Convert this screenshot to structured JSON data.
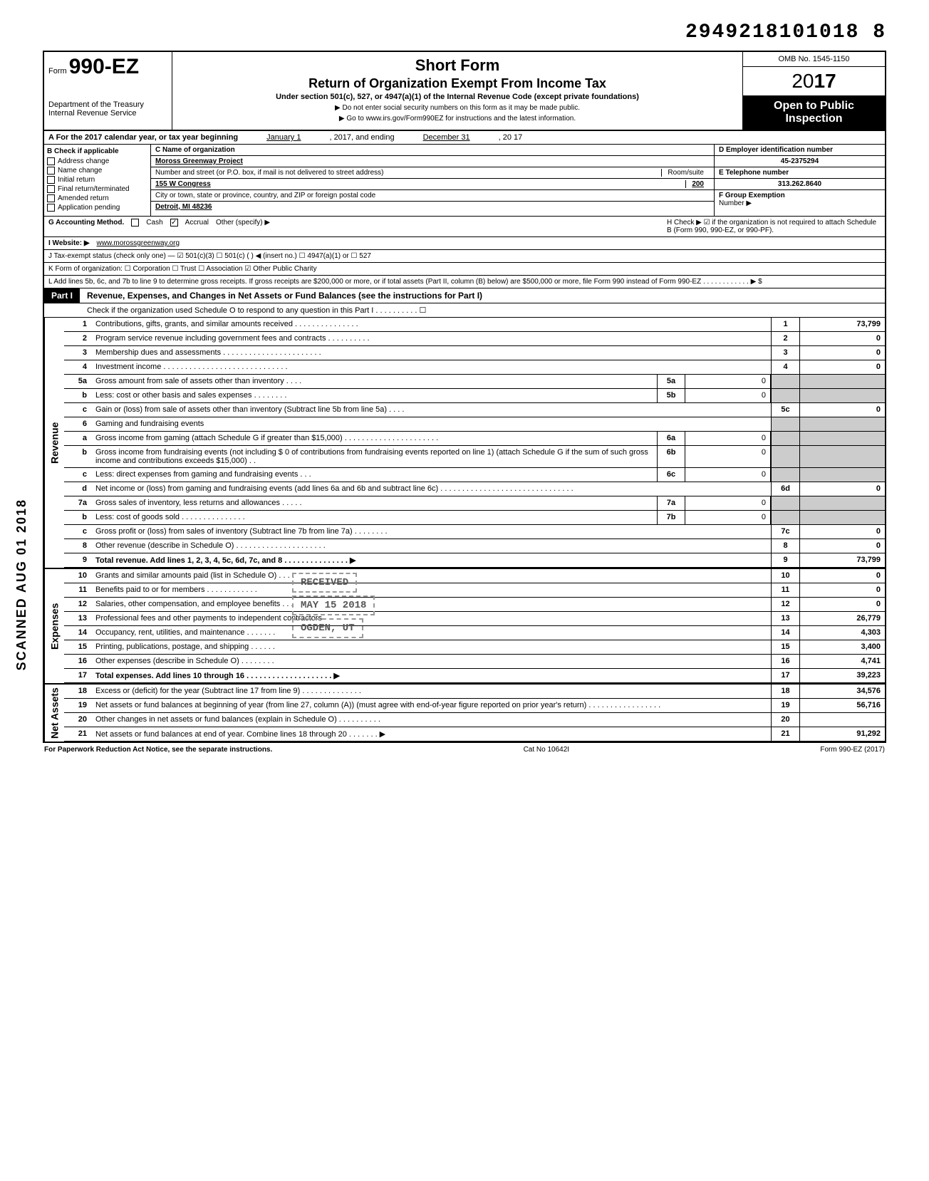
{
  "doc_id": "2949218101018 8",
  "form": {
    "number": "990-EZ",
    "prefix": "Form",
    "dept": "Department of the Treasury",
    "irs": "Internal Revenue Service",
    "title_main": "Short Form",
    "title_sub": "Return of Organization Exempt From Income Tax",
    "title_small": "Under section 501(c), 527, or 4947(a)(1) of the Internal Revenue Code (except private foundations)",
    "note1": "▶ Do not enter social security numbers on this form as it may be made public.",
    "note2": "▶ Go to www.irs.gov/Form990EZ for instructions and the latest information.",
    "omb": "OMB No. 1545-1150",
    "year_prefix": "20",
    "year_bold": "17",
    "open_public": "Open to Public Inspection"
  },
  "row_a": {
    "label": "A  For the 2017 calendar year, or tax year beginning",
    "begin": "January 1",
    "mid": ", 2017, and ending",
    "end": "December 31",
    "tail": ", 20   17"
  },
  "col_b": {
    "header": "B  Check if applicable",
    "items": [
      "Address change",
      "Name change",
      "Initial return",
      "Final return/terminated",
      "Amended return",
      "Application pending"
    ]
  },
  "col_c": {
    "name_lbl": "C  Name of organization",
    "name": "Moross Greenway Project",
    "street_lbl": "Number and street (or P.O. box, if mail is not delivered to street address)",
    "street": "155 W Congress",
    "room_lbl": "Room/suite",
    "room": "200",
    "city_lbl": "City or town, state or province, country, and ZIP or foreign postal code",
    "city": "Detroit, MI  48236"
  },
  "col_de": {
    "d_lbl": "D Employer identification number",
    "d_val": "45-2375294",
    "e_lbl": "E Telephone number",
    "e_val": "313.262.8640",
    "f_lbl": "F Group Exemption",
    "f_val": "Number ▶"
  },
  "meta": {
    "g": "G Accounting Method.",
    "g_cash": "Cash",
    "g_accrual": "Accrual",
    "g_other": "Other (specify) ▶",
    "h": "H  Check ▶ ☑ if the organization is not required to attach Schedule B (Form 990, 990-EZ, or 990-PF).",
    "i": "I  Website: ▶",
    "i_val": "www.morossgreenway.org",
    "j": "J Tax-exempt status (check only one) — ☑ 501(c)(3)   ☐ 501(c) (    ) ◀ (insert no.) ☐ 4947(a)(1) or   ☐ 527",
    "k": "K Form of organization:  ☐ Corporation    ☐ Trust    ☐ Association    ☑ Other  Public Charity",
    "l": "L  Add lines 5b, 6c, and 7b to line 9 to determine gross receipts. If gross receipts are $200,000 or more, or if total assets (Part II, column (B) below) are $500,000 or more, file Form 990 instead of Form 990-EZ . . . . . . . . . . . . ▶  $"
  },
  "part1": {
    "badge": "Part I",
    "title": "Revenue, Expenses, and Changes in Net Assets or Fund Balances (see the instructions for Part I)",
    "note": "Check if the organization used Schedule O to respond to any question in this Part I . . . . . . . . . . ☐"
  },
  "sections": {
    "revenue": "Revenue",
    "expenses": "Expenses",
    "netassets": "Net Assets"
  },
  "lines": [
    {
      "n": "1",
      "d": "Contributions, gifts, grants, and similar amounts received . . . . . . . . . . . . . . .",
      "rn": "1",
      "rv": "73,799"
    },
    {
      "n": "2",
      "d": "Program service revenue including government fees and contracts . . . . . . . . . .",
      "rn": "2",
      "rv": "0"
    },
    {
      "n": "3",
      "d": "Membership dues and assessments . . . . . . . . . . . . . . . . . . . . . . .",
      "rn": "3",
      "rv": "0"
    },
    {
      "n": "4",
      "d": "Investment income . . . . . . . . . . . . . . . . . . . . . . . . . . . . .",
      "rn": "4",
      "rv": "0"
    },
    {
      "n": "5a",
      "d": "Gross amount from sale of assets other than inventory . . . .",
      "mn": "5a",
      "mv": "0",
      "shaded": true
    },
    {
      "n": "b",
      "d": "Less: cost or other basis and sales expenses . . . . . . . .",
      "mn": "5b",
      "mv": "0",
      "shaded": true
    },
    {
      "n": "c",
      "d": "Gain or (loss) from sale of assets other than inventory (Subtract line 5b from line 5a) . . . .",
      "rn": "5c",
      "rv": "0"
    },
    {
      "n": "6",
      "d": "Gaming and fundraising events",
      "shaded": true
    },
    {
      "n": "a",
      "d": "Gross income from gaming (attach Schedule G if greater than $15,000) . . . . . . . . . . . . . . . . . . . . . .",
      "mn": "6a",
      "mv": "0",
      "shaded": true
    },
    {
      "n": "b",
      "d": "Gross income from fundraising events (not including  $            0 of contributions from fundraising events reported on line 1) (attach Schedule G if the sum of such gross income and contributions exceeds $15,000) . .",
      "mn": "6b",
      "mv": "0",
      "shaded": true
    },
    {
      "n": "c",
      "d": "Less: direct expenses from gaming and fundraising events . . .",
      "mn": "6c",
      "mv": "0",
      "shaded": true
    },
    {
      "n": "d",
      "d": "Net income or (loss) from gaming and fundraising events (add lines 6a and 6b and subtract line 6c) . . . . . . . . . . . . . . . . . . . . . . . . . . . . . . .",
      "rn": "6d",
      "rv": "0"
    },
    {
      "n": "7a",
      "d": "Gross sales of inventory, less returns and allowances . . . . .",
      "mn": "7a",
      "mv": "0",
      "shaded": true
    },
    {
      "n": "b",
      "d": "Less: cost of goods sold . . . . . . . . . . . . . . .",
      "mn": "7b",
      "mv": "0",
      "shaded": true
    },
    {
      "n": "c",
      "d": "Gross profit or (loss) from sales of inventory (Subtract line 7b from line 7a) . . . . . . . .",
      "rn": "7c",
      "rv": "0"
    },
    {
      "n": "8",
      "d": "Other revenue (describe in Schedule O) . . . . . . . . . . . . . . . . . . . . .",
      "rn": "8",
      "rv": "0"
    },
    {
      "n": "9",
      "d": "Total revenue. Add lines 1, 2, 3, 4, 5c, 6d, 7c, and 8 . . . . . . . . . . . . . . . ▶",
      "rn": "9",
      "rv": "73,799",
      "bold": true
    }
  ],
  "exp_lines": [
    {
      "n": "10",
      "d": "Grants and similar amounts paid (list in Schedule O) . . . .",
      "rn": "10",
      "rv": "0"
    },
    {
      "n": "11",
      "d": "Benefits paid to or for members . . . . . . . . . . . .",
      "rn": "11",
      "rv": "0"
    },
    {
      "n": "12",
      "d": "Salaries, other compensation, and employee benefits . . .",
      "rn": "12",
      "rv": "0"
    },
    {
      "n": "13",
      "d": "Professional fees and other payments to independent contractors",
      "rn": "13",
      "rv": "26,779"
    },
    {
      "n": "14",
      "d": "Occupancy, rent, utilities, and maintenance . . . . . . .",
      "rn": "14",
      "rv": "4,303"
    },
    {
      "n": "15",
      "d": "Printing, publications, postage, and shipping . . . . . .",
      "rn": "15",
      "rv": "3,400"
    },
    {
      "n": "16",
      "d": "Other expenses (describe in Schedule O) . . . . . . . .",
      "rn": "16",
      "rv": "4,741"
    },
    {
      "n": "17",
      "d": "Total expenses. Add lines 10 through 16 . . . . . . . . . . . . . . . . . . . . ▶",
      "rn": "17",
      "rv": "39,223",
      "bold": true
    }
  ],
  "na_lines": [
    {
      "n": "18",
      "d": "Excess or (deficit) for the year (Subtract line 17 from line 9) . . . . . . . . . . . . . .",
      "rn": "18",
      "rv": "34,576"
    },
    {
      "n": "19",
      "d": "Net assets or fund balances at beginning of year (from line 27, column (A)) (must agree with end-of-year figure reported on prior year's return) . . . . . . . . . . . . . . . . .",
      "rn": "19",
      "rv": "56,716"
    },
    {
      "n": "20",
      "d": "Other changes in net assets or fund balances (explain in Schedule O) . . . . . . . . . .",
      "rn": "20",
      "rv": ""
    },
    {
      "n": "21",
      "d": "Net assets or fund balances at end of year. Combine lines 18 through 20 . . . . . . . ▶",
      "rn": "21",
      "rv": "91,292"
    }
  ],
  "stamps": {
    "received": "RECEIVED",
    "date": "MAY 15 2018",
    "ogden": "OGDEN, UT"
  },
  "footer": {
    "left": "For Paperwork Reduction Act Notice, see the separate instructions.",
    "mid": "Cat No 10642I",
    "right": "Form 990-EZ (2017)"
  },
  "scan_label": "SCANNED AUG 01 2018"
}
